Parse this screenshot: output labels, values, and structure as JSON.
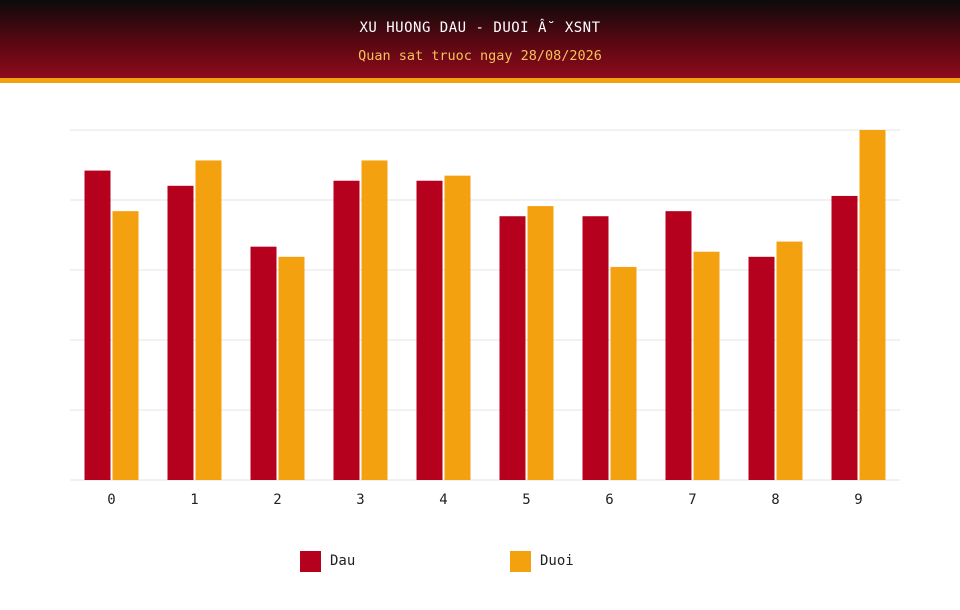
{
  "header": {
    "title": "XU HUONG DAU - DUOI Â˘ XSNT",
    "subtitle": "Quan sat truoc ngay 28/08/2026"
  },
  "colors": {
    "dau": "#b5001e",
    "duoi": "#f4a10f",
    "grid": "#e6e6e6"
  },
  "chart_data": {
    "type": "bar",
    "title": "XU HUONG DAU - DUOI Â˘ XSNT",
    "subtitle": "Quan sat truoc ngay 28/08/2026",
    "categories": [
      "0",
      "1",
      "2",
      "3",
      "4",
      "5",
      "6",
      "7",
      "8",
      "9"
    ],
    "series": [
      {
        "name": "Dau",
        "values": [
          6.1,
          5.8,
          4.6,
          5.9,
          5.9,
          5.2,
          5.2,
          5.3,
          4.4,
          5.6
        ]
      },
      {
        "name": "Duoi",
        "values": [
          5.3,
          6.3,
          4.4,
          6.3,
          6.0,
          5.4,
          4.2,
          4.5,
          4.7,
          6.9
        ]
      }
    ],
    "ylim": [
      0,
      6.9
    ],
    "grid": true,
    "legend_position": "bottom"
  }
}
